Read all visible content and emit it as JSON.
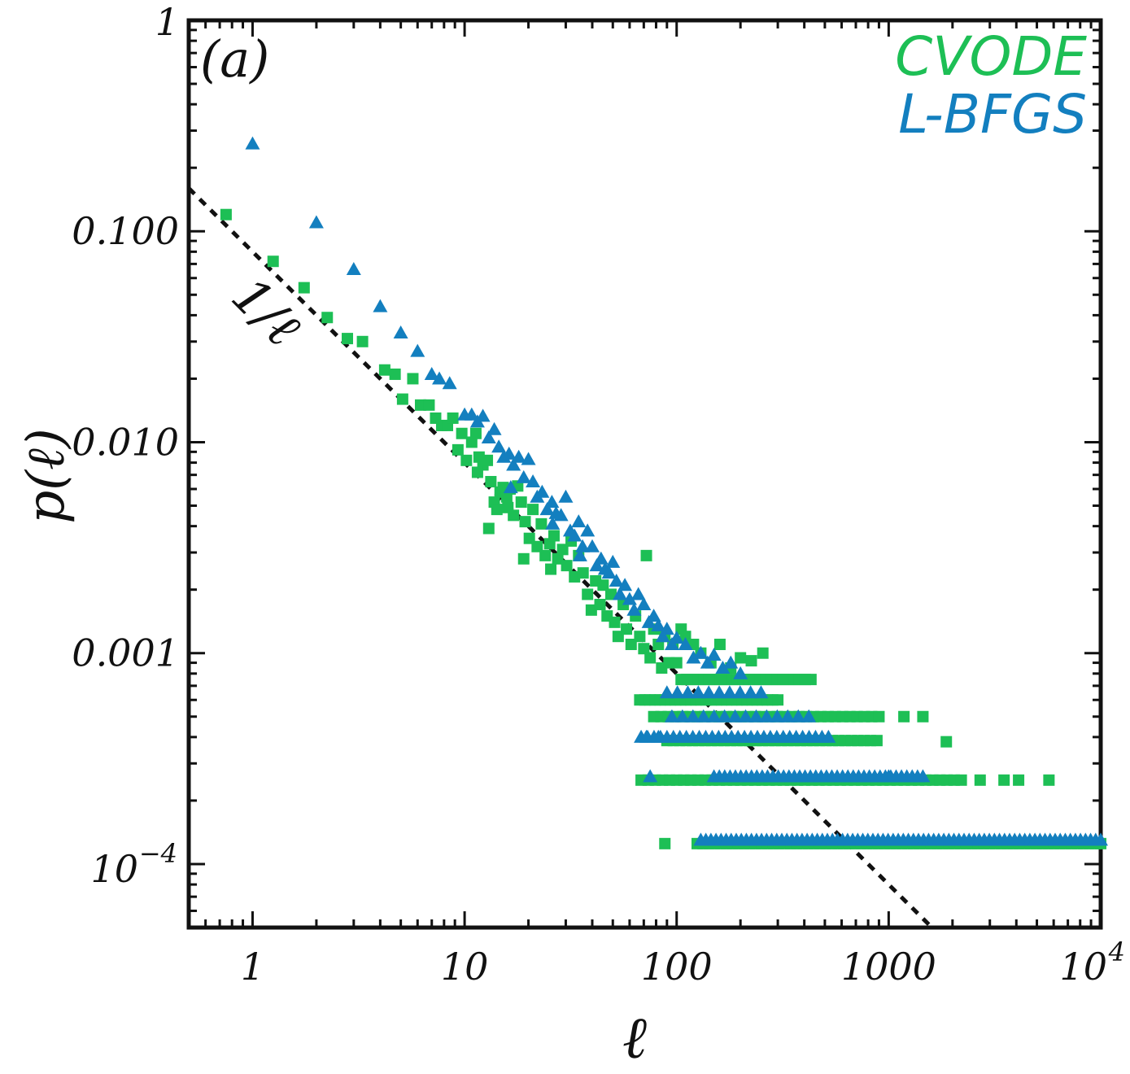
{
  "chart_data": {
    "type": "scatter",
    "panel_label": "(a)",
    "xlabel": "ℓ",
    "ylabel": "p(ℓ)",
    "xscale": "log",
    "yscale": "log",
    "xlim": [
      0.5,
      10000
    ],
    "ylim": [
      5e-05,
      1
    ],
    "x_ticks": [
      {
        "value": 1,
        "label": "1"
      },
      {
        "value": 10,
        "label": "10"
      },
      {
        "value": 100,
        "label": "100"
      },
      {
        "value": 1000,
        "label": "1000"
      },
      {
        "value": 10000,
        "label": "10",
        "sup": "4"
      }
    ],
    "y_ticks": [
      {
        "value": 1,
        "label": "1"
      },
      {
        "value": 0.1,
        "label": "0.100"
      },
      {
        "value": 0.01,
        "label": "0.010"
      },
      {
        "value": 0.001,
        "label": "0.001"
      },
      {
        "value": 0.0001,
        "label": "10",
        "sup": "−4"
      }
    ],
    "legend": {
      "position": "top-right",
      "entries": [
        "CVODE",
        "L-BFGS"
      ]
    },
    "reference_line": {
      "label": "1/ℓ",
      "slope": -1,
      "coefficient": 0.08,
      "x_range": [
        0.5,
        1600
      ],
      "style": "dotted"
    },
    "series": [
      {
        "name": "CVODE",
        "marker": "square",
        "color": "#1dbf55",
        "points": [
          [
            0.75,
            0.12
          ],
          [
            1.25,
            0.072
          ],
          [
            1.75,
            0.054
          ],
          [
            2.25,
            0.039
          ],
          [
            2.8,
            0.031
          ],
          [
            3.3,
            0.03
          ],
          [
            4.2,
            0.022
          ],
          [
            4.7,
            0.021
          ],
          [
            5.1,
            0.016
          ],
          [
            5.7,
            0.02
          ],
          [
            6.2,
            0.015
          ],
          [
            6.8,
            0.015
          ],
          [
            7.3,
            0.013
          ],
          [
            7.8,
            0.012
          ],
          [
            8.3,
            0.012
          ],
          [
            8.8,
            0.013
          ],
          [
            9.3,
            0.0092
          ],
          [
            9.7,
            0.011
          ],
          [
            10.2,
            0.0082
          ],
          [
            10.8,
            0.01
          ],
          [
            11.3,
            0.011
          ],
          [
            11.7,
            0.0085
          ],
          [
            12.2,
            0.0078
          ],
          [
            12.8,
            0.0082
          ],
          [
            13.3,
            0.0065
          ],
          [
            13.8,
            0.0052
          ],
          [
            14.2,
            0.0048
          ],
          [
            14.7,
            0.0058
          ],
          [
            15.2,
            0.0061
          ],
          [
            15.8,
            0.0055
          ],
          [
            16.4,
            0.006
          ],
          [
            17,
            0.0045
          ],
          [
            17.8,
            0.0062
          ],
          [
            18.5,
            0.0052
          ],
          [
            19.3,
            0.0042
          ],
          [
            20.2,
            0.0035
          ],
          [
            21,
            0.0048
          ],
          [
            22,
            0.0032
          ],
          [
            23,
            0.0041
          ],
          [
            24,
            0.0029
          ],
          [
            25.2,
            0.0033
          ],
          [
            26.4,
            0.0036
          ],
          [
            27.5,
            0.0028
          ],
          [
            29,
            0.0031
          ],
          [
            30.3,
            0.0026
          ],
          [
            31.8,
            0.0034
          ],
          [
            33,
            0.0023
          ],
          [
            34.5,
            0.0029
          ],
          [
            36.2,
            0.0024
          ],
          [
            38,
            0.0019
          ],
          [
            39.6,
            0.0016
          ],
          [
            41.5,
            0.0022
          ],
          [
            43.5,
            0.0017
          ],
          [
            45,
            0.0021
          ],
          [
            47,
            0.0015
          ],
          [
            49,
            0.0019
          ],
          [
            51,
            0.0014
          ],
          [
            53,
            0.0012
          ],
          [
            56,
            0.0017
          ],
          [
            58,
            0.0013
          ],
          [
            61,
            0.0011
          ],
          [
            64,
            0.0015
          ],
          [
            67,
            0.0012
          ],
          [
            70,
            0.00105
          ],
          [
            72,
            0.0029
          ],
          [
            75,
            0.00095
          ],
          [
            78,
            0.0013
          ],
          [
            82,
            0.0011
          ],
          [
            85,
            0.00085
          ],
          [
            88,
            0.0012
          ],
          [
            92,
            0.0009
          ],
          [
            96,
            0.0011
          ],
          [
            100,
            0.0009
          ],
          [
            105,
            0.0013
          ],
          [
            110,
            0.0012
          ],
          [
            120,
            0.0011
          ],
          [
            130,
            0.001
          ],
          [
            145,
            0.0009
          ],
          [
            160,
            0.0011
          ],
          [
            180,
            0.00085
          ],
          [
            200,
            0.00095
          ],
          [
            225,
            0.00092
          ],
          [
            255,
            0.001
          ],
          [
            13,
            0.0039
          ],
          [
            19,
            0.0028
          ],
          [
            25.5,
            0.0025
          ],
          [
            11.5,
            0.0072
          ],
          [
            16,
            0.0049
          ]
        ],
        "levels": [
          {
            "y": 0.00075,
            "x_range": [
              105,
              430
            ],
            "count": 24
          },
          {
            "y": 0.0006,
            "x_range": [
              67,
              300
            ],
            "count": 28
          },
          {
            "y": 0.0005,
            "x_range": [
              78,
              900
            ],
            "count": 32
          },
          {
            "y": 0.000385,
            "x_range": [
              90,
              880
            ],
            "count": 34
          },
          {
            "y": 0.00025,
            "x_range": [
              68,
              2200
            ],
            "count": 46
          },
          {
            "y": 0.000125,
            "x_range": [
              125,
              10000
            ],
            "count": 70
          }
        ],
        "outliers": [
          [
            1180,
            0.0005
          ],
          [
            1450,
            0.0005
          ],
          [
            1870,
            0.00038
          ],
          [
            2700,
            0.00025
          ],
          [
            3500,
            0.00025
          ],
          [
            4100,
            0.00025
          ],
          [
            5700,
            0.00025
          ],
          [
            88,
            0.000125
          ]
        ]
      },
      {
        "name": "L-BFGS",
        "marker": "triangle",
        "color": "#137fbf",
        "points": [
          [
            1,
            0.26
          ],
          [
            2,
            0.11
          ],
          [
            3,
            0.066
          ],
          [
            4,
            0.044
          ],
          [
            5,
            0.033
          ],
          [
            6,
            0.027
          ],
          [
            7,
            0.021
          ],
          [
            7.6,
            0.02
          ],
          [
            8.5,
            0.019
          ],
          [
            10,
            0.0135
          ],
          [
            10.8,
            0.0135
          ],
          [
            11.5,
            0.0125
          ],
          [
            12.2,
            0.0133
          ],
          [
            13,
            0.0105
          ],
          [
            13.8,
            0.0115
          ],
          [
            14.5,
            0.0095
          ],
          [
            15.3,
            0.0085
          ],
          [
            16.2,
            0.0088
          ],
          [
            17,
            0.0078
          ],
          [
            18,
            0.0085
          ],
          [
            19,
            0.0068
          ],
          [
            20,
            0.0083
          ],
          [
            21,
            0.0065
          ],
          [
            22,
            0.0055
          ],
          [
            23.2,
            0.0058
          ],
          [
            24.5,
            0.0048
          ],
          [
            25.8,
            0.0052
          ],
          [
            27,
            0.0046
          ],
          [
            28.5,
            0.0045
          ],
          [
            30,
            0.0055
          ],
          [
            31.5,
            0.0038
          ],
          [
            33,
            0.0036
          ],
          [
            34.5,
            0.0042
          ],
          [
            36,
            0.0032
          ],
          [
            38,
            0.0038
          ],
          [
            40,
            0.0032
          ],
          [
            42,
            0.0026
          ],
          [
            44,
            0.0028
          ],
          [
            46,
            0.0025
          ],
          [
            48,
            0.0024
          ],
          [
            50,
            0.0027
          ],
          [
            52,
            0.0022
          ],
          [
            54,
            0.0019
          ],
          [
            57,
            0.0021
          ],
          [
            60,
            0.0018
          ],
          [
            63,
            0.0016
          ],
          [
            66,
            0.0019
          ],
          [
            70,
            0.0017
          ],
          [
            74,
            0.0014
          ],
          [
            78,
            0.0015
          ],
          [
            82,
            0.00135
          ],
          [
            86,
            0.0012
          ],
          [
            90,
            0.0013
          ],
          [
            95,
            0.0011
          ],
          [
            100,
            0.00118
          ],
          [
            110,
            0.0011
          ],
          [
            120,
            0.00095
          ],
          [
            130,
            0.001
          ],
          [
            140,
            0.0009
          ],
          [
            150,
            0.00098
          ],
          [
            165,
            0.00085
          ],
          [
            180,
            0.0009
          ],
          [
            200,
            0.0008
          ],
          [
            16.5,
            0.0061
          ],
          [
            26,
            0.0041
          ],
          [
            35,
            0.0029
          ]
        ],
        "levels": [
          {
            "y": 0.00065,
            "x_range": [
              90,
              250
            ],
            "count": 10
          },
          {
            "y": 0.0005,
            "x_range": [
              95,
              420
            ],
            "count": 14
          },
          {
            "y": 0.0004,
            "x_range": [
              68,
              520
            ],
            "count": 30
          },
          {
            "y": 0.00026,
            "x_range": [
              150,
              1450
            ],
            "count": 40
          },
          {
            "y": 0.00013,
            "x_range": [
              130,
              10000
            ],
            "count": 80
          }
        ],
        "outliers": [
          [
            72,
            0.0004
          ],
          [
            82,
            0.0004
          ],
          [
            75,
            0.00026
          ],
          [
            1000,
            0.00026
          ]
        ]
      }
    ]
  }
}
